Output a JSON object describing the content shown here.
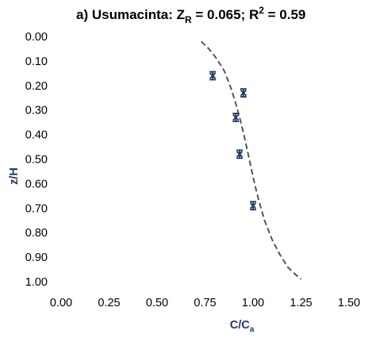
{
  "chart_data": {
    "type": "scatter",
    "title": {
      "prefix": "a) Usumacinta:  Z",
      "z_subscript": "R",
      "mid": " = 0.065; R",
      "r_superscript": "2",
      "suffix": " = 0.59"
    },
    "xlabel": {
      "main": "C/C",
      "subscript": "a"
    },
    "ylabel": "z/H",
    "xlim": [
      0,
      1.5
    ],
    "ylim": [
      0,
      1
    ],
    "y_reversed": true,
    "x_ticks": [
      "0.00",
      "0.25",
      "0.50",
      "0.75",
      "1.00",
      "1.25",
      "1.50"
    ],
    "y_ticks": [
      "0.00",
      "0.10",
      "0.20",
      "0.30",
      "0.40",
      "0.50",
      "0.60",
      "0.70",
      "0.80",
      "0.90",
      "1.00"
    ],
    "grid": false,
    "series": [
      {
        "kind": "points",
        "marker": "x-with-errorbars",
        "color": "#1f3864",
        "x": [
          0.79,
          0.95,
          0.91,
          0.93,
          1.0
        ],
        "y": [
          0.16,
          0.23,
          0.33,
          0.48,
          0.69
        ]
      },
      {
        "kind": "curve",
        "line_style": "dashed",
        "color": "#555555",
        "x": [
          0.73,
          0.77,
          0.81,
          0.85,
          0.88,
          0.905,
          0.93,
          0.955,
          0.98,
          1.005,
          1.03,
          1.06,
          1.1,
          1.14,
          1.18,
          1.22,
          1.25
        ],
        "y": [
          0.02,
          0.05,
          0.09,
          0.14,
          0.2,
          0.26,
          0.33,
          0.41,
          0.5,
          0.59,
          0.67,
          0.75,
          0.83,
          0.89,
          0.94,
          0.97,
          0.99
        ]
      }
    ]
  }
}
